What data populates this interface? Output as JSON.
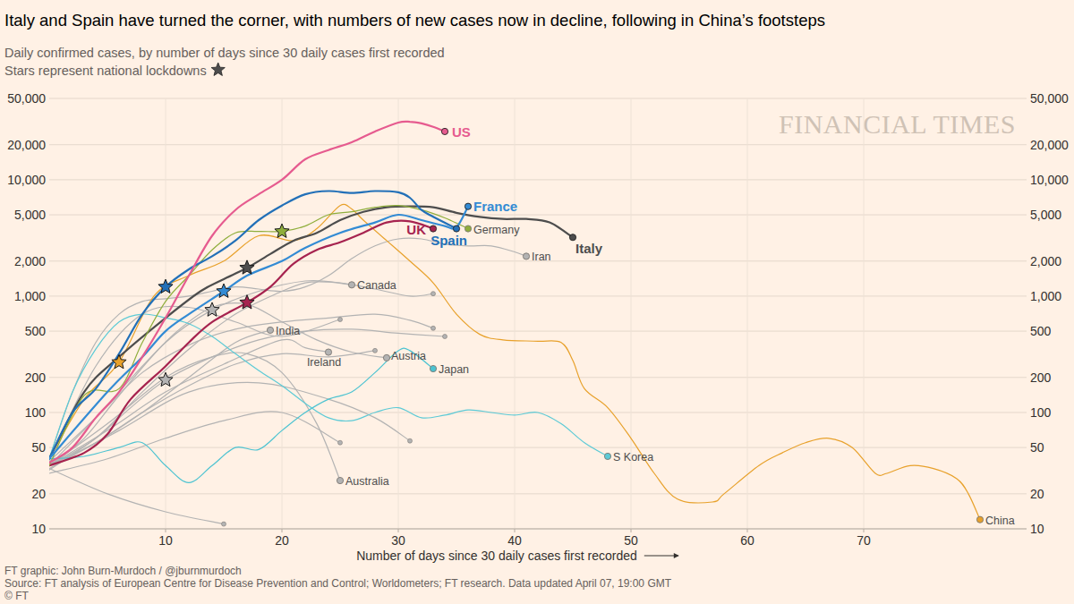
{
  "chart_data": {
    "type": "line",
    "title": "Italy and Spain have turned the corner, with numbers of new cases now in decline, following in China’s footsteps",
    "subtitle": [
      "Daily confirmed cases, by number of days since 30 daily cases first recorded",
      "Stars represent national lockdowns"
    ],
    "xlabel": "Number of days since 30 daily cases first recorded",
    "watermark": "FINANCIAL TIMES",
    "source": [
      "FT graphic: John Burn-Murdoch / @jburnmurdoch",
      "Source: FT analysis of European Centre for Disease Prevention and Control; Worldometers; FT research. Data updated April 07, 19:00 GMT",
      "© FT"
    ],
    "log": "y",
    "grid": true,
    "xlim": [
      0,
      84
    ],
    "xticks": [
      10,
      20,
      30,
      40,
      50,
      60,
      70
    ],
    "ylim": [
      10,
      50000
    ],
    "yticks": [
      10,
      20,
      50,
      100,
      200,
      500,
      {
        "value": 1000,
        "label": "1,000"
      },
      {
        "value": 2000,
        "label": "2,000"
      },
      {
        "value": 5000,
        "label": "5,000"
      },
      {
        "value": 10000,
        "label": "10,000"
      },
      {
        "value": 20000,
        "label": "20,000"
      },
      {
        "value": 50000,
        "label": "50,000"
      }
    ],
    "series": [
      {
        "name": null,
        "color": "#b3b3b3",
        "x": [
          0,
          3,
          6,
          10,
          14,
          18,
          22,
          25,
          28,
          31,
          33
        ],
        "values": [
          35,
          60,
          140,
          400,
          760,
          1100,
          1350,
          1300,
          1150,
          1000,
          1050
        ],
        "lockdown": 14
      },
      {
        "name": null,
        "color": "#b3b3b3",
        "x": [
          0,
          4,
          7,
          10,
          14,
          18,
          22,
          26,
          30,
          34
        ],
        "values": [
          32,
          60,
          110,
          190,
          300,
          420,
          500,
          520,
          480,
          450
        ],
        "lockdown": 10
      },
      {
        "name": null,
        "color": "#b3b3b3",
        "x": [
          0,
          4,
          8,
          12,
          16,
          20,
          24,
          28
        ],
        "values": [
          35,
          55,
          100,
          170,
          260,
          320,
          300,
          340
        ]
      },
      {
        "name": null,
        "color": "#b3b3b3",
        "x": [
          0,
          5,
          10,
          15,
          20,
          25
        ],
        "values": [
          30,
          40,
          60,
          85,
          100,
          55
        ]
      },
      {
        "name": null,
        "color": "#b3b3b3",
        "x": [
          0,
          5,
          10,
          15
        ],
        "values": [
          33,
          20,
          14,
          11
        ]
      },
      {
        "name": null,
        "color": "#b3b3b3",
        "x": [
          0,
          4,
          8,
          12,
          16,
          20,
          24,
          28,
          31,
          33
        ],
        "values": [
          38,
          90,
          220,
          380,
          520,
          600,
          650,
          700,
          620,
          530
        ]
      },
      {
        "name": null,
        "color": "#b3b3b3",
        "x": [
          0,
          6,
          12,
          18,
          24,
          28,
          31
        ],
        "values": [
          33,
          70,
          150,
          180,
          130,
          90,
          57
        ]
      },
      {
        "name": null,
        "color": "#b3b3b3",
        "x": [
          0,
          4,
          8,
          12,
          16,
          20,
          25
        ],
        "values": [
          40,
          250,
          700,
          800,
          600,
          450,
          630
        ]
      },
      {
        "name": "Iran",
        "color": "#b3b3b3",
        "x": [
          0,
          2,
          4,
          6,
          8,
          10,
          12,
          14,
          16,
          18,
          20,
          22,
          24,
          26,
          28,
          30,
          32,
          34,
          36,
          38,
          40,
          41
        ],
        "values": [
          40,
          150,
          400,
          700,
          900,
          950,
          1000,
          1100,
          1200,
          1150,
          1100,
          1200,
          1500,
          2100,
          2700,
          3100,
          3100,
          2800,
          2700,
          2700,
          2400,
          2200
        ]
      },
      {
        "name": "Canada",
        "color": "#b3b3b3",
        "x": [
          0,
          4,
          8,
          12,
          16,
          20,
          22,
          24,
          26
        ],
        "values": [
          35,
          60,
          150,
          350,
          700,
          1100,
          1300,
          1320,
          1250
        ]
      },
      {
        "name": "India",
        "color": "#b3b3b3",
        "x": [
          0,
          4,
          8,
          12,
          16,
          19
        ],
        "values": [
          35,
          55,
          100,
          200,
          400,
          510
        ]
      },
      {
        "name": "Ireland",
        "color": "#b3b3b3",
        "x": [
          0,
          5,
          10,
          15,
          20,
          22,
          24
        ],
        "values": [
          35,
          70,
          150,
          260,
          420,
          360,
          330
        ]
      },
      {
        "name": "Austria",
        "color": "#b3b3b3",
        "x": [
          0,
          4,
          8,
          11,
          14,
          17,
          20,
          23,
          26,
          29
        ],
        "values": [
          35,
          90,
          250,
          500,
          800,
          850,
          600,
          420,
          330,
          295
        ]
      },
      {
        "name": "Australia",
        "color": "#b3b3b3",
        "x": [
          0,
          5,
          10,
          14,
          17,
          20,
          23,
          25
        ],
        "values": [
          35,
          80,
          200,
          300,
          320,
          220,
          80,
          26
        ]
      },
      {
        "name": "Japan",
        "color": "#4cc3d1",
        "x": [
          0,
          3,
          6,
          8,
          10,
          12,
          14,
          16,
          18,
          20,
          22,
          24,
          26,
          28,
          30,
          31,
          33
        ],
        "values": [
          40,
          42,
          50,
          55,
          35,
          25,
          35,
          50,
          48,
          70,
          100,
          130,
          150,
          220,
          340,
          340,
          238
        ]
      },
      {
        "name": "S Korea",
        "color": "#5ccad6",
        "x": [
          0,
          2,
          4,
          6,
          8,
          10,
          12,
          14,
          16,
          18,
          20,
          22,
          24,
          26,
          28,
          30,
          32,
          34,
          36,
          38,
          40,
          42,
          44,
          46,
          48
        ],
        "values": [
          40,
          150,
          350,
          600,
          700,
          650,
          580,
          450,
          320,
          230,
          170,
          120,
          90,
          85,
          100,
          110,
          90,
          95,
          105,
          100,
          95,
          100,
          80,
          55,
          42
        ]
      },
      {
        "name": "China",
        "color": "#e8a12b",
        "x": [
          0,
          3,
          6,
          9,
          12,
          15,
          18,
          21,
          23,
          25,
          26,
          27,
          29,
          31,
          33,
          35,
          37,
          39,
          42,
          44,
          45,
          46,
          48,
          50,
          52,
          54,
          57,
          58,
          61,
          63,
          65,
          67,
          69,
          71,
          72,
          74,
          76,
          78,
          79,
          80
        ],
        "values": [
          40,
          130,
          270,
          1000,
          1500,
          2000,
          3300,
          3000,
          3800,
          6000,
          5600,
          4500,
          3000,
          2000,
          1300,
          700,
          470,
          420,
          410,
          400,
          280,
          160,
          110,
          60,
          30,
          18,
          17,
          20,
          35,
          45,
          55,
          60,
          50,
          30,
          30,
          35,
          33,
          27,
          20,
          12
        ],
        "lockdown": 6
      },
      {
        "name": "Italy",
        "color": "#4d4d4d",
        "x": [
          0,
          3,
          6,
          10,
          13,
          15,
          17,
          19,
          21,
          23,
          25,
          27,
          29,
          31,
          33,
          35,
          37,
          39,
          41,
          43,
          45
        ],
        "values": [
          40,
          150,
          300,
          650,
          1100,
          1400,
          1750,
          2300,
          3000,
          3500,
          4500,
          5300,
          5800,
          5900,
          5800,
          5200,
          4800,
          4600,
          4600,
          4300,
          3200
        ],
        "lockdown": 17
      },
      {
        "name": "UK",
        "color": "#a6234f",
        "x": [
          0,
          3,
          5,
          7,
          10,
          12,
          14,
          17,
          19,
          21,
          23,
          25,
          27,
          29,
          31,
          33
        ],
        "values": [
          35,
          45,
          65,
          130,
          250,
          400,
          600,
          880,
          1200,
          1900,
          2500,
          2900,
          3500,
          4300,
          4400,
          3800
        ],
        "lockdown": 17
      },
      {
        "name": "Germany",
        "color": "#8fae3c",
        "x": [
          0,
          3,
          6,
          8,
          10,
          12,
          14,
          16,
          18,
          20,
          22,
          24,
          26,
          28,
          30,
          32,
          34,
          36
        ],
        "values": [
          35,
          140,
          160,
          400,
          900,
          1500,
          2500,
          3500,
          3600,
          3600,
          4000,
          5000,
          5300,
          5800,
          6000,
          5500,
          4700,
          3800
        ],
        "lockdown": 20
      },
      {
        "name": "Spain",
        "color": "#2270b8",
        "x": [
          0,
          2,
          4,
          6,
          8,
          10,
          12,
          14,
          16,
          18,
          20,
          22,
          24,
          26,
          28,
          30,
          31,
          32,
          33,
          35
        ],
        "values": [
          40,
          100,
          160,
          320,
          700,
          1200,
          1700,
          2200,
          3000,
          4500,
          6000,
          7500,
          8000,
          7700,
          8000,
          7800,
          7000,
          5500,
          4800,
          3800
        ],
        "lockdown": 10
      },
      {
        "name": "France",
        "color": "#338bd4",
        "x": [
          0,
          5,
          8,
          10,
          12,
          15,
          17,
          20,
          22,
          25,
          28,
          30,
          32,
          34,
          35,
          36
        ],
        "values": [
          40,
          150,
          300,
          500,
          700,
          1100,
          1500,
          2000,
          2600,
          3500,
          4300,
          5000,
          4500,
          4000,
          3900,
          5900
        ],
        "lockdown": 15
      },
      {
        "name": "US",
        "color": "#e65b8f",
        "x": [
          0,
          2,
          4,
          6,
          8,
          10,
          12,
          14,
          16,
          18,
          20,
          22,
          24,
          26,
          28,
          30,
          31,
          32,
          33,
          34
        ],
        "values": [
          37,
          50,
          90,
          150,
          300,
          650,
          1500,
          3300,
          5500,
          7500,
          10000,
          15000,
          18000,
          21000,
          26000,
          31000,
          31500,
          30500,
          28500,
          26000
        ]
      }
    ]
  }
}
